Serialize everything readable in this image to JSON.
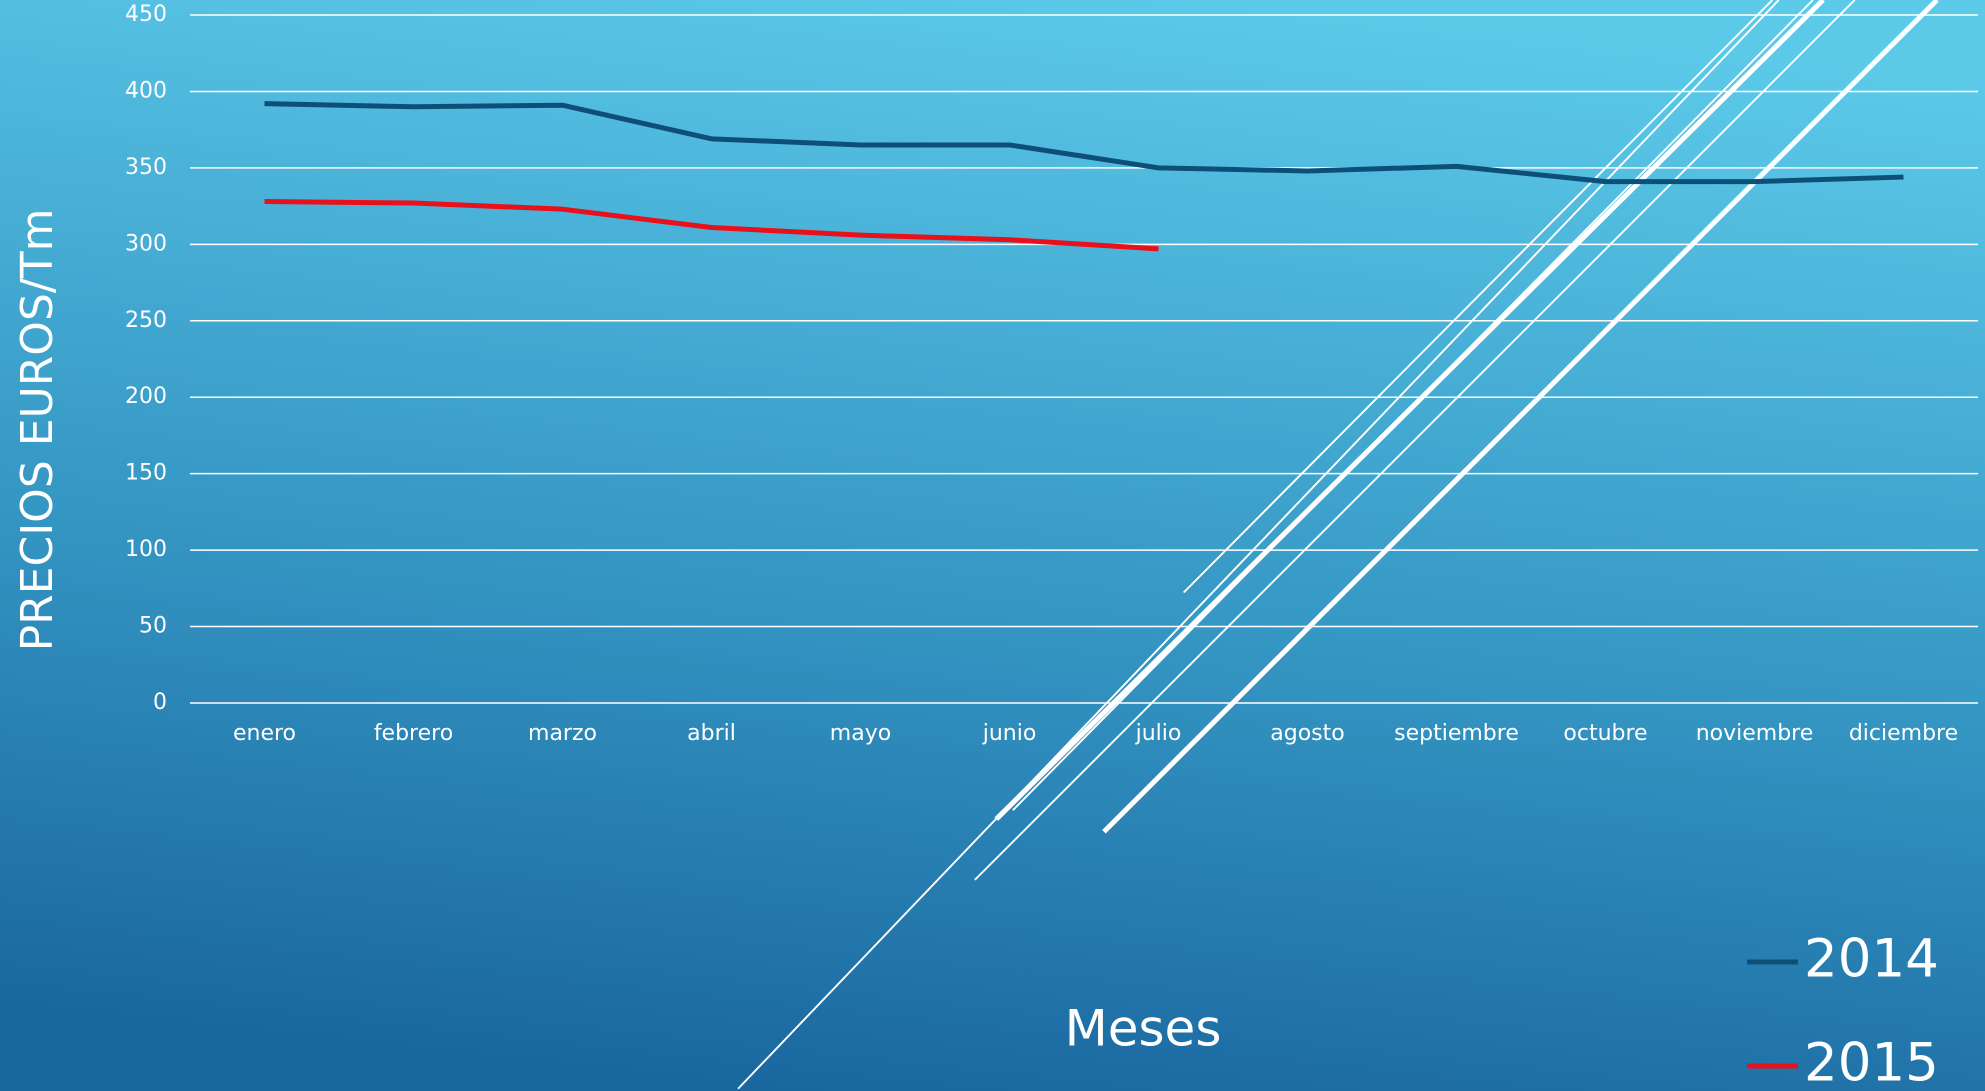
{
  "chart_data": {
    "type": "line",
    "y_label": "PRECIOS EUROS/Tm",
    "x_label": "Meses",
    "categories": [
      "enero",
      "febrero",
      "marzo",
      "abril",
      "mayo",
      "junio",
      "julio",
      "agosto",
      "septiembre",
      "octubre",
      "noviembre",
      "diciembre"
    ],
    "series": [
      {
        "name": "2014",
        "color": "#0e4f78",
        "values": [
          392,
          390,
          391,
          369,
          365,
          365,
          350,
          348,
          351,
          341,
          341,
          344
        ]
      },
      {
        "name": "2015",
        "color": "#e8101a",
        "values": [
          328,
          327,
          323,
          311,
          306,
          303,
          297,
          null,
          null,
          null,
          null,
          null
        ]
      }
    ],
    "ylim": [
      0,
      450
    ],
    "yticks": [
      0,
      50,
      100,
      150,
      200,
      250,
      300,
      350,
      400,
      450
    ],
    "grid": true
  }
}
